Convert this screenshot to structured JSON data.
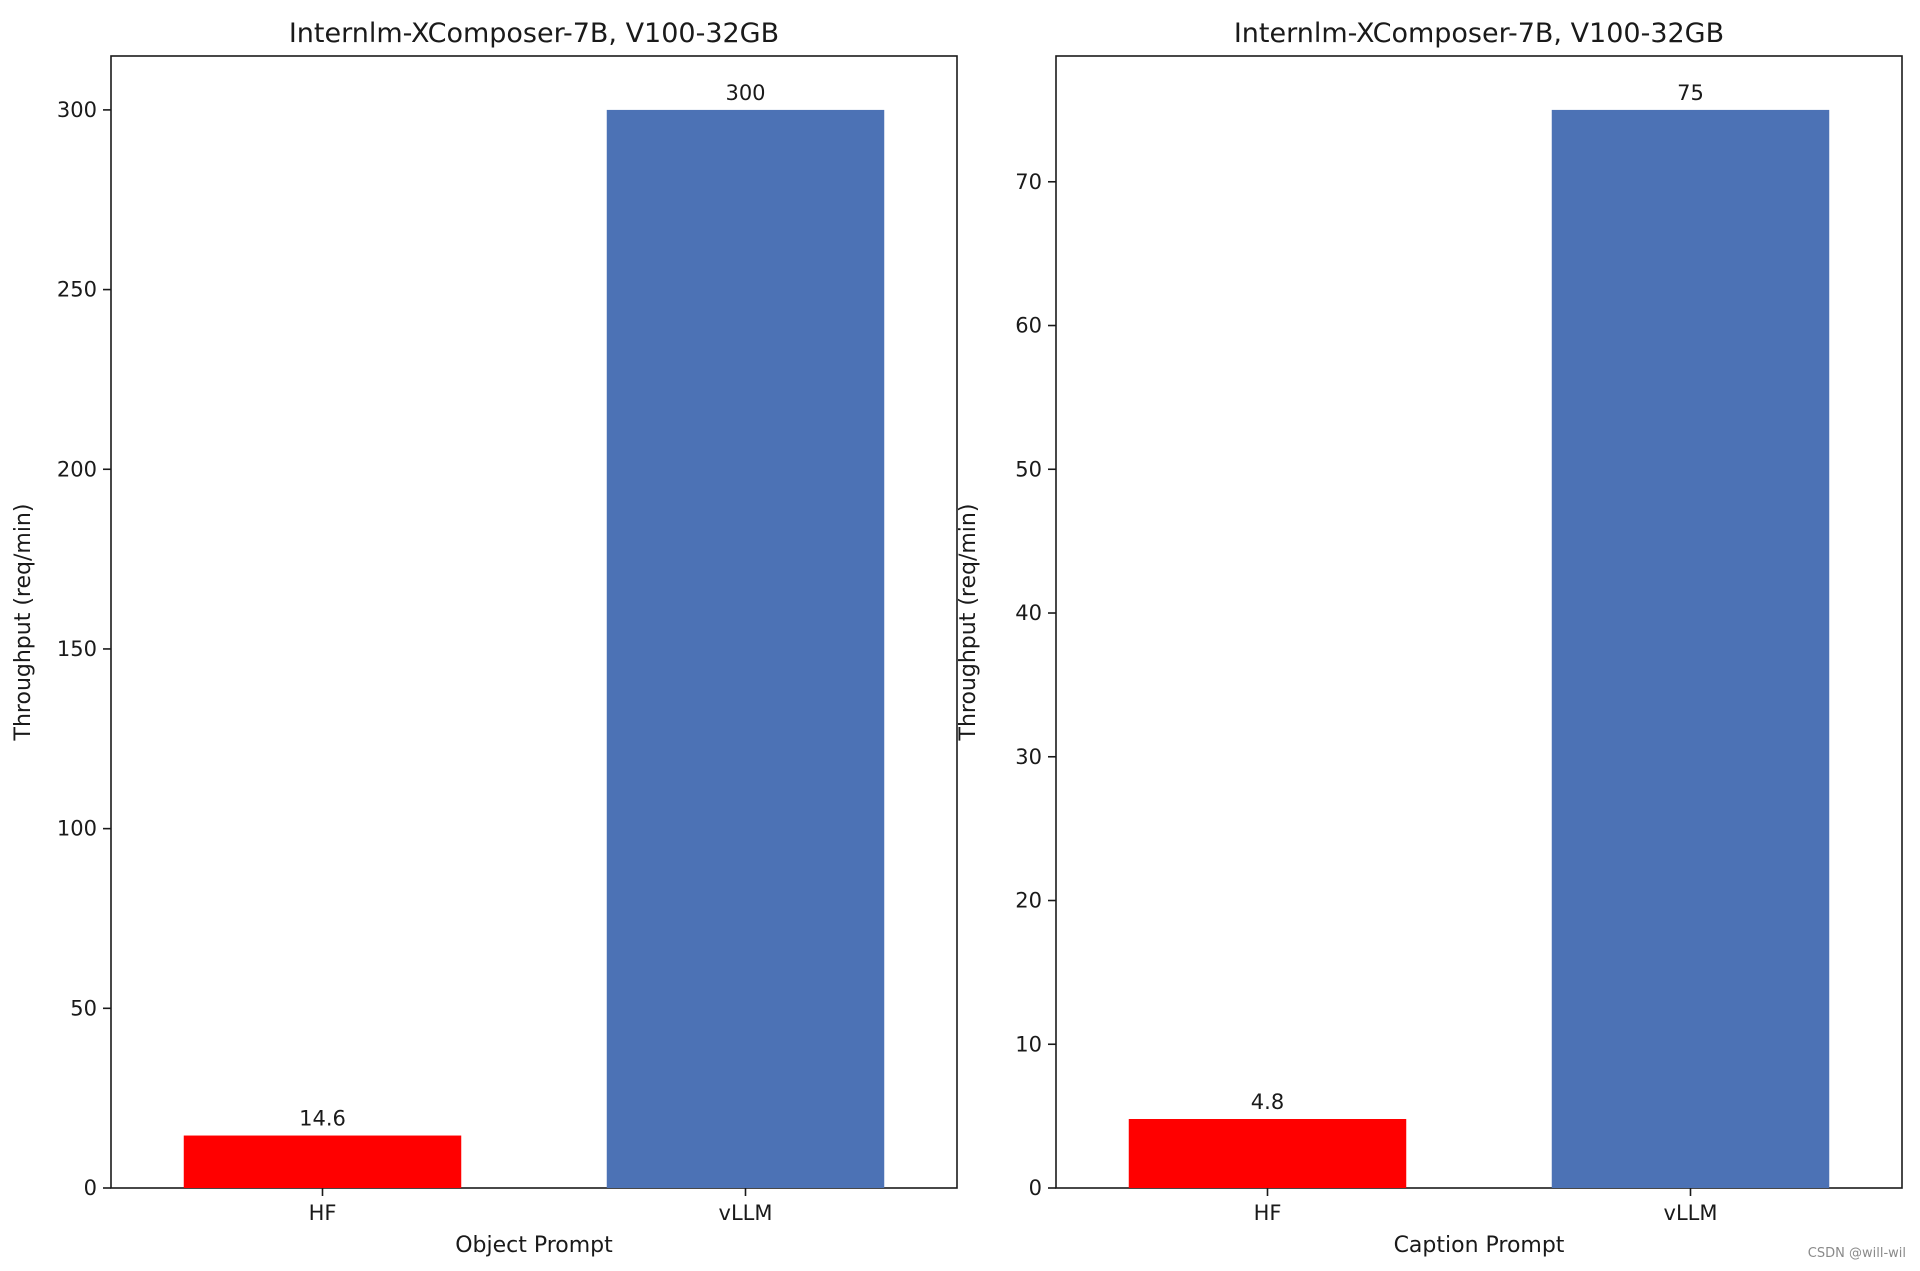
{
  "chart_data": [
    {
      "type": "bar",
      "title": "Internlm-XComposer-7B, V100-32GB",
      "xlabel": "Object Prompt",
      "ylabel": "Throughput (req/min)",
      "categories": [
        "HF",
        "vLLM"
      ],
      "values": [
        14.6,
        300
      ],
      "value_labels": [
        "14.6",
        "300"
      ],
      "colors": [
        "#ff0000",
        "#4c72b5"
      ],
      "ylim": [
        0,
        315
      ],
      "yticks": [
        0,
        50,
        100,
        150,
        200,
        250,
        300
      ],
      "grid": false,
      "legend": "none"
    },
    {
      "type": "bar",
      "title": "Internlm-XComposer-7B, V100-32GB",
      "xlabel": "Caption Prompt",
      "ylabel": "Throughput (req/min)",
      "categories": [
        "HF",
        "vLLM"
      ],
      "values": [
        4.8,
        75
      ],
      "value_labels": [
        "4.8",
        "75"
      ],
      "colors": [
        "#ff0000",
        "#4c72b5"
      ],
      "ylim": [
        0,
        78.75
      ],
      "yticks": [
        0,
        10,
        20,
        30,
        40,
        50,
        60,
        70
      ],
      "grid": false,
      "legend": "none"
    }
  ],
  "watermark": "CSDN @will-wil"
}
